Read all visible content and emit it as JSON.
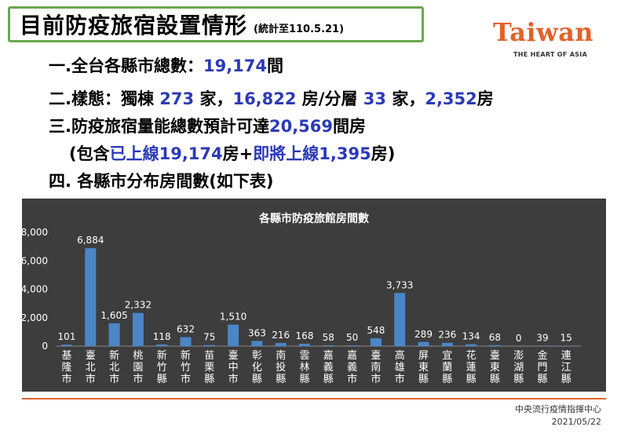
{
  "header": {
    "title": "目前防疫旅宿設置情形",
    "note": "(統計至110.5.21)"
  },
  "logo": {
    "word": "Taiwan",
    "tagline": "THE HEART OF ASIA",
    "color": "#e2622b"
  },
  "summary": {
    "line1": {
      "label": "一.全台各縣市總數：",
      "value": "19,174",
      "unit": "間"
    },
    "line2": {
      "p1": "二.樣態：獨棟 ",
      "v1": "273",
      "p2": " 家，",
      "v2": "16,822",
      "p3": " 房/分層 ",
      "v3": "33",
      "p4": " 家，",
      "v4": "2,352",
      "p5": "房"
    },
    "line3": {
      "label": "三.防疫旅宿量能總數預計可達",
      "value": "20,569",
      "unit": "間房"
    },
    "line4": {
      "p1": "(包含",
      "v1": "已上線19,174",
      "p2": "房+",
      "v2": "即將上線1,395",
      "p3": "房)"
    },
    "line5": "四. 各縣市分布房間數(如下表)"
  },
  "chart_data": {
    "type": "bar",
    "title": "各縣市防疫旅館房間數",
    "categories": [
      "基隆市",
      "臺北市",
      "新北市",
      "桃園市",
      "新竹縣",
      "新竹市",
      "苗栗縣",
      "臺中市",
      "彰化縣",
      "南投縣",
      "雲林縣",
      "嘉義縣",
      "嘉義市",
      "臺南市",
      "高雄市",
      "屏東縣",
      "宜蘭縣",
      "花蓮縣",
      "臺東縣",
      "澎湖縣",
      "金門縣",
      "連江縣"
    ],
    "values": [
      101,
      6884,
      1605,
      2332,
      118,
      632,
      75,
      1510,
      363,
      216,
      168,
      58,
      50,
      548,
      3733,
      289,
      236,
      134,
      68,
      0,
      39,
      15
    ],
    "value_labels": [
      "101",
      "6,884",
      "1,605",
      "2,332",
      "118",
      "632",
      "75",
      "1,510",
      "363",
      "216",
      "168",
      "58",
      "50",
      "548",
      "3,733",
      "289",
      "236",
      "134",
      "68",
      "0",
      "39",
      "15"
    ],
    "y_ticks": [
      "8,000",
      "6,000",
      "4,000",
      "2,000",
      "0"
    ],
    "ylim": [
      0,
      8000
    ],
    "bar_color": "#4a86c8",
    "background": "#3d3d3d",
    "grid": false,
    "legend": "none"
  },
  "footer": {
    "org": "中央流行疫情指揮中心",
    "date": "2021/05/22",
    "accent": "#e2622b"
  }
}
